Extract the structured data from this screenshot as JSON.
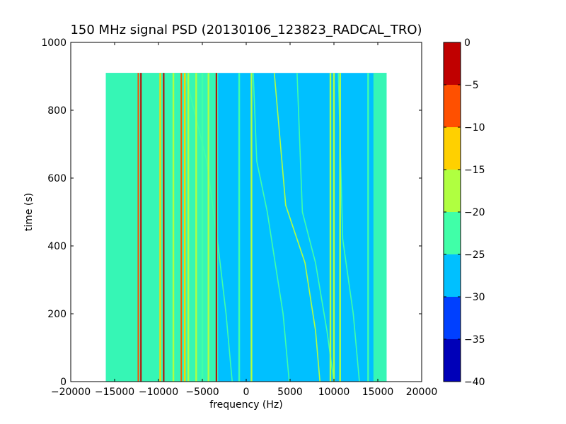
{
  "chart_data": {
    "type": "heatmap",
    "title": "150 MHz signal PSD (20130106_123823_RADCAL_TRO)",
    "xlabel": "frequency (Hz)",
    "ylabel": "time (s)",
    "xlim": [
      -20000,
      20000
    ],
    "ylim": [
      0,
      1000
    ],
    "x_ticks": [
      -20000,
      -15000,
      -10000,
      -5000,
      0,
      5000,
      10000,
      15000,
      20000
    ],
    "y_ticks": [
      0,
      200,
      400,
      600,
      800,
      1000
    ],
    "data_extent": {
      "x": [
        -16000,
        16000
      ],
      "y": [
        0,
        910
      ]
    },
    "background_level": -28,
    "colorbar": {
      "levels": [
        -40,
        -35,
        -30,
        -25,
        -20,
        -15,
        -10,
        -5,
        0
      ],
      "colors": [
        "#0000b8",
        "#0040ff",
        "#00c0ff",
        "#40ffa8",
        "#b0ff40",
        "#ffd000",
        "#ff5000",
        "#c00000"
      ],
      "tick_labels": [
        "0",
        "−5",
        "−10",
        "−15",
        "−20",
        "−25",
        "−30",
        "−35",
        "−40"
      ]
    },
    "vertical_lines": [
      {
        "x": -12300,
        "level": -10
      },
      {
        "x": -12000,
        "level": -5
      },
      {
        "x": -9800,
        "level": -15
      },
      {
        "x": -9400,
        "level": -5
      },
      {
        "x": -8300,
        "level": -20
      },
      {
        "x": -7400,
        "level": -10
      },
      {
        "x": -7000,
        "level": -15
      },
      {
        "x": -6600,
        "level": -20
      },
      {
        "x": -5700,
        "level": -20
      },
      {
        "x": -5000,
        "level": -22
      },
      {
        "x": -4300,
        "level": -20
      },
      {
        "x": -3400,
        "level": -5
      },
      {
        "x": -800,
        "level": -22
      },
      {
        "x": 600,
        "level": -20
      },
      {
        "x": 9600,
        "level": -20
      },
      {
        "x": 10000,
        "level": -18
      },
      {
        "x": 10700,
        "level": -20
      },
      {
        "x": 13900,
        "level": -22
      }
    ],
    "bands": [
      {
        "x": [
          -16000,
          -12400
        ],
        "level": -22
      },
      {
        "x": [
          -12400,
          -3200
        ],
        "level": -21
      },
      {
        "x": [
          14500,
          16000
        ],
        "level": -22
      }
    ],
    "drifting_traces": [
      {
        "points": [
          [
            -7000,
            910
          ],
          [
            -4500,
            650
          ],
          [
            -3200,
            400
          ],
          [
            -2300,
            200
          ],
          [
            -1600,
            0
          ]
        ],
        "level": -22
      },
      {
        "points": [
          [
            800,
            910
          ],
          [
            1200,
            650
          ],
          [
            2400,
            500
          ],
          [
            3300,
            350
          ],
          [
            4200,
            200
          ],
          [
            4900,
            0
          ]
        ],
        "level": -22
      },
      {
        "points": [
          [
            3200,
            910
          ],
          [
            4500,
            520
          ],
          [
            6700,
            350
          ],
          [
            7900,
            150
          ],
          [
            8400,
            0
          ]
        ],
        "level": -20
      },
      {
        "points": [
          [
            5800,
            910
          ],
          [
            6400,
            500
          ],
          [
            7900,
            350
          ],
          [
            9200,
            150
          ],
          [
            10000,
            0
          ]
        ],
        "level": -22
      },
      {
        "points": [
          [
            10500,
            910
          ],
          [
            11000,
            420
          ],
          [
            12200,
            200
          ],
          [
            12900,
            0
          ]
        ],
        "level": -22
      }
    ]
  }
}
